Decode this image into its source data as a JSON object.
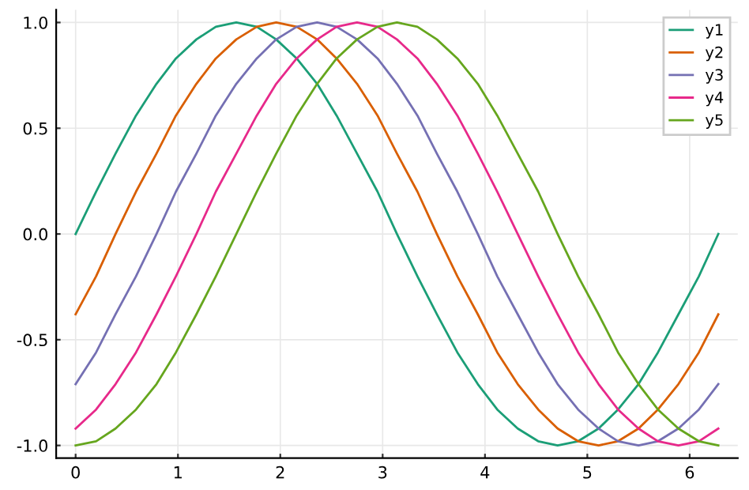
{
  "chart_data": {
    "type": "line",
    "x": [
      0,
      0.2,
      0.39,
      0.59,
      0.79,
      0.98,
      1.18,
      1.37,
      1.57,
      1.77,
      1.96,
      2.16,
      2.36,
      2.55,
      2.75,
      2.95,
      3.14,
      3.34,
      3.53,
      3.73,
      3.93,
      4.12,
      4.32,
      4.52,
      4.71,
      4.91,
      5.11,
      5.3,
      5.5,
      5.69,
      5.89,
      6.09,
      6.28
    ],
    "series": [
      {
        "name": "y1",
        "color": "#1b9e77",
        "values": [
          0,
          0.2,
          0.38,
          0.56,
          0.71,
          0.83,
          0.92,
          0.98,
          1,
          0.98,
          0.92,
          0.83,
          0.71,
          0.56,
          0.38,
          0.2,
          0,
          -0.2,
          -0.38,
          -0.56,
          -0.71,
          -0.83,
          -0.92,
          -0.98,
          -1,
          -0.98,
          -0.92,
          -0.83,
          -0.71,
          -0.56,
          -0.38,
          -0.2,
          0
        ]
      },
      {
        "name": "y2",
        "color": "#d95f02",
        "values": [
          -0.38,
          -0.2,
          0,
          0.2,
          0.38,
          0.56,
          0.71,
          0.83,
          0.92,
          0.98,
          1,
          0.98,
          0.92,
          0.83,
          0.71,
          0.56,
          0.38,
          0.2,
          0,
          -0.2,
          -0.38,
          -0.56,
          -0.71,
          -0.83,
          -0.92,
          -0.98,
          -1,
          -0.98,
          -0.92,
          -0.83,
          -0.71,
          -0.56,
          -0.38
        ]
      },
      {
        "name": "y3",
        "color": "#7570b3",
        "values": [
          -0.71,
          -0.56,
          -0.38,
          -0.2,
          0,
          0.2,
          0.38,
          0.56,
          0.71,
          0.83,
          0.92,
          0.98,
          1,
          0.98,
          0.92,
          0.83,
          0.71,
          0.56,
          0.38,
          0.2,
          0,
          -0.2,
          -0.38,
          -0.56,
          -0.71,
          -0.83,
          -0.92,
          -0.98,
          -1,
          -0.98,
          -0.92,
          -0.83,
          -0.71
        ]
      },
      {
        "name": "y4",
        "color": "#e7298a",
        "values": [
          -0.92,
          -0.83,
          -0.71,
          -0.56,
          -0.38,
          -0.2,
          0,
          0.2,
          0.38,
          0.56,
          0.71,
          0.83,
          0.92,
          0.98,
          1,
          0.98,
          0.92,
          0.83,
          0.71,
          0.56,
          0.38,
          0.2,
          0,
          -0.2,
          -0.38,
          -0.56,
          -0.71,
          -0.83,
          -0.92,
          -0.98,
          -1,
          -0.98,
          -0.92
        ]
      },
      {
        "name": "y5",
        "color": "#66a61e",
        "values": [
          -1,
          -0.98,
          -0.92,
          -0.83,
          -0.71,
          -0.56,
          -0.38,
          -0.2,
          0,
          0.2,
          0.38,
          0.56,
          0.71,
          0.83,
          0.92,
          0.98,
          1,
          0.98,
          0.92,
          0.83,
          0.71,
          0.56,
          0.38,
          0.2,
          0,
          -0.2,
          -0.38,
          -0.56,
          -0.71,
          -0.83,
          -0.92,
          -0.98,
          -1
        ]
      }
    ],
    "xlim": [
      -0.19,
      6.47
    ],
    "ylim": [
      -1.06,
      1.06
    ],
    "xticks": [
      0,
      1,
      2,
      3,
      4,
      5,
      6
    ],
    "yticks": [
      {
        "value": -1,
        "label": "-1.0"
      },
      {
        "value": -0.5,
        "label": "-0.5"
      },
      {
        "value": 0,
        "label": "0.0"
      },
      {
        "value": 0.5,
        "label": "0.5"
      },
      {
        "value": 1,
        "label": "1.0"
      }
    ],
    "grid": true,
    "legend": "top right"
  }
}
